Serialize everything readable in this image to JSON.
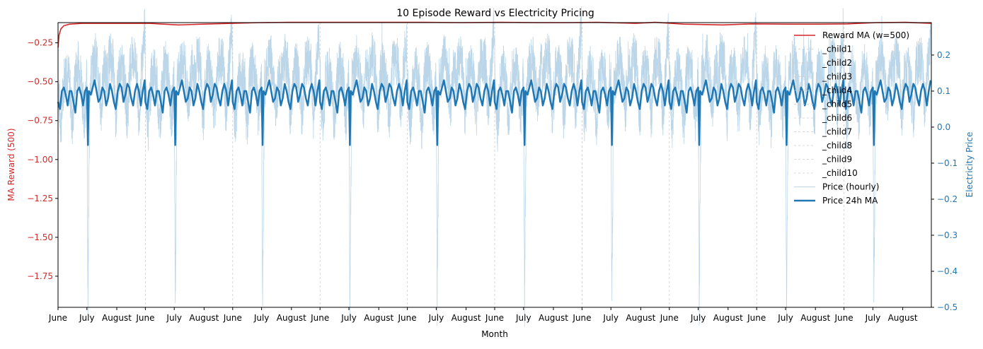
{
  "chart_data": {
    "type": "line",
    "title": "10 Episode Reward vs Electricity Pricing",
    "xlabel": "Month",
    "ylabel_left": "MA Reward (500)",
    "ylabel_right": "Electricity Price",
    "x_tick_labels": [
      "June",
      "July",
      "August",
      "June",
      "July",
      "August",
      "June",
      "July",
      "August",
      "June",
      "July",
      "August",
      "June",
      "July",
      "August",
      "June",
      "July",
      "August",
      "June",
      "July",
      "August",
      "June",
      "July",
      "August",
      "June",
      "July",
      "August",
      "June",
      "July",
      "August"
    ],
    "episodes": 10,
    "x_range_days": [
      0,
      907
    ],
    "left_ylim": [
      -1.95,
      -0.12
    ],
    "left_ticks": [
      -0.25,
      -0.5,
      -0.75,
      -1.0,
      -1.25,
      -1.5,
      -1.75
    ],
    "left_tick_labels": [
      "−0.25",
      "−0.50",
      "−0.75",
      "−1.00",
      "−1.25",
      "−1.50",
      "−1.75"
    ],
    "right_ylim": [
      -0.5,
      0.29
    ],
    "right_ticks": [
      0.2,
      0.1,
      0.0,
      -0.1,
      -0.2,
      -0.3,
      -0.4,
      -0.5
    ],
    "right_tick_labels": [
      "0.2",
      "0.1",
      "0.0",
      "−0.1",
      "−0.2",
      "−0.3",
      "−0.4",
      "−0.5"
    ],
    "left_color": "#d62728",
    "right_color": "#1f77b4",
    "legend_position": "top-right",
    "series": [
      {
        "name": "Reward MA (w=500)",
        "axis": "left",
        "color": "#d62728",
        "days": [
          0,
          1,
          3,
          6,
          12,
          25,
          45,
          70,
          95,
          125,
          150,
          180,
          210,
          240,
          270,
          300,
          340,
          380,
          420,
          460,
          500,
          530,
          560,
          600,
          620,
          650,
          690,
          720,
          760,
          790,
          820,
          850,
          880,
          907
        ],
        "values": [
          -0.28,
          -0.2,
          -0.16,
          -0.14,
          -0.13,
          -0.125,
          -0.125,
          -0.125,
          -0.125,
          -0.135,
          -0.13,
          -0.125,
          -0.12,
          -0.118,
          -0.118,
          -0.118,
          -0.118,
          -0.118,
          -0.12,
          -0.118,
          -0.12,
          -0.12,
          -0.118,
          -0.125,
          -0.118,
          -0.13,
          -0.135,
          -0.128,
          -0.13,
          -0.13,
          -0.128,
          -0.12,
          -0.118,
          -0.125
        ]
      },
      {
        "name": "_child1",
        "role": "episode-boundary",
        "x": 90.7
      },
      {
        "name": "_child2",
        "role": "episode-boundary",
        "x": 181.4
      },
      {
        "name": "_child3",
        "role": "episode-boundary",
        "x": 272.1
      },
      {
        "name": "_child4",
        "role": "episode-boundary",
        "x": 362.8
      },
      {
        "name": "_child5",
        "role": "episode-boundary",
        "x": 453.5
      },
      {
        "name": "_child6",
        "role": "episode-boundary",
        "x": 544.2
      },
      {
        "name": "_child7",
        "role": "episode-boundary",
        "x": 634.9
      },
      {
        "name": "_child8",
        "role": "episode-boundary",
        "x": 725.6
      },
      {
        "name": "_child9",
        "role": "episode-boundary",
        "x": 816.3
      },
      {
        "name": "_child10",
        "role": "episode-boundary",
        "x": 907.0
      },
      {
        "name": "Price (hourly)",
        "axis": "right",
        "color": "#1f77b4",
        "opacity": 0.3,
        "episode_days": [
          0,
          3,
          6,
          9,
          12,
          15,
          18,
          21,
          24,
          27,
          30,
          31,
          33,
          36,
          39,
          42,
          45,
          48,
          51,
          54,
          57,
          60,
          63,
          66,
          69,
          72,
          75,
          78,
          81,
          84,
          87,
          90
        ],
        "episode_values": [
          0.13,
          0.0,
          0.13,
          0.16,
          0.12,
          0.0,
          0.15,
          0.17,
          0.14,
          0.02,
          0.14,
          -0.49,
          0.12,
          0.16,
          0.2,
          0.13,
          0.05,
          0.17,
          0.14,
          0.2,
          0.18,
          0.02,
          0.15,
          0.17,
          0.13,
          0.02,
          0.17,
          0.19,
          0.18,
          0.03,
          0.17,
          0.27
        ]
      },
      {
        "name": "Price 24h MA",
        "axis": "right",
        "color": "#1f77b4",
        "episode_days": [
          0,
          2,
          4,
          6,
          8,
          10,
          12,
          14,
          16,
          18,
          20,
          22,
          24,
          26,
          28,
          30,
          31,
          32,
          34,
          36,
          38,
          40,
          42,
          44,
          46,
          48,
          50,
          52,
          54,
          56,
          58,
          60,
          62,
          64,
          66,
          68,
          70,
          72,
          74,
          76,
          78,
          80,
          82,
          84,
          86,
          88,
          90
        ],
        "episode_values": [
          0.07,
          0.05,
          0.1,
          0.11,
          0.09,
          0.06,
          0.1,
          0.1,
          0.07,
          0.04,
          0.1,
          0.11,
          0.09,
          0.06,
          0.1,
          0.11,
          -0.05,
          0.1,
          0.09,
          0.11,
          0.13,
          0.1,
          0.07,
          0.08,
          0.11,
          0.1,
          0.06,
          0.08,
          0.12,
          0.1,
          0.07,
          0.05,
          0.1,
          0.12,
          0.11,
          0.07,
          0.09,
          0.12,
          0.11,
          0.08,
          0.06,
          0.1,
          0.12,
          0.1,
          0.06,
          0.1,
          0.13
        ]
      }
    ]
  }
}
